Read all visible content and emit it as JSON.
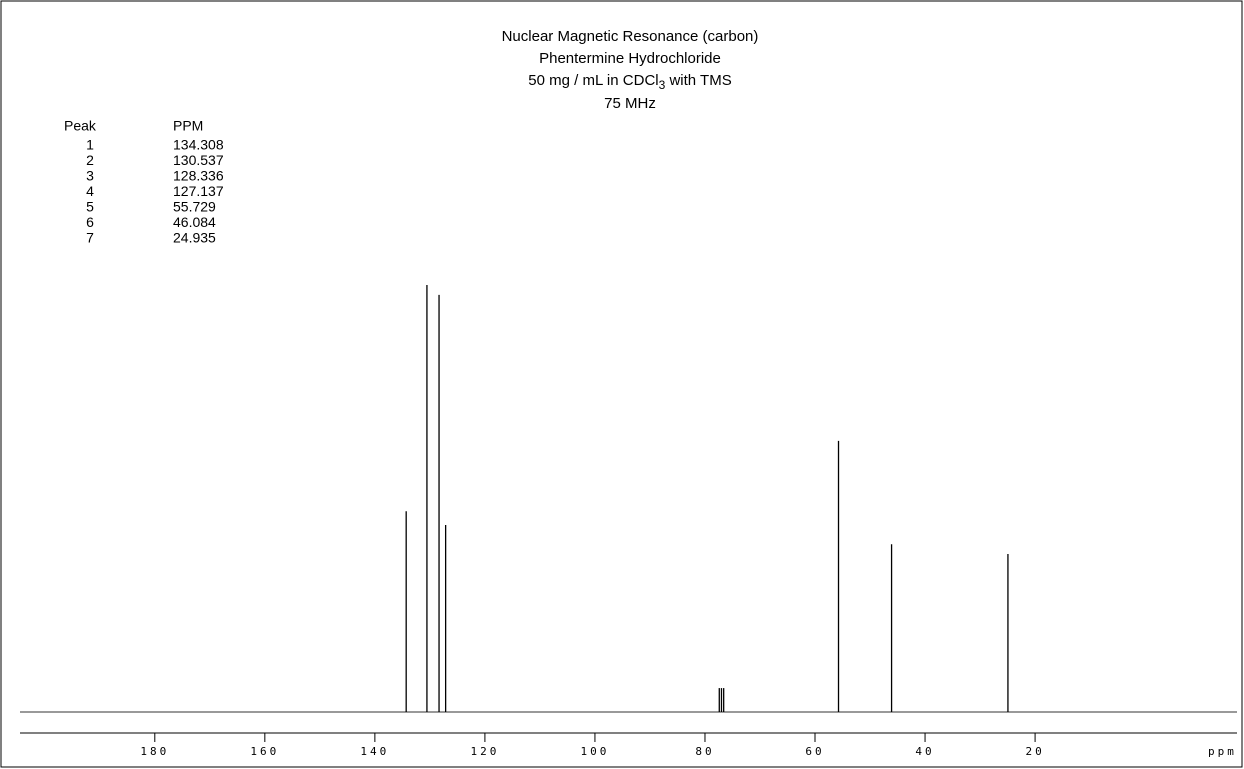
{
  "chart_data": {
    "type": "spectrum",
    "title": "Nuclear Magnetic Resonance (carbon)",
    "subtitle": "Phentermine Hydrochloride",
    "conditions": {
      "text": "50 mg / mL in CDCl",
      "subscript": "3",
      "rest": " with TMS"
    },
    "frequency": "75 MHz",
    "x_label": "ppm",
    "peak_table": {
      "header": [
        "Peak",
        "PPM"
      ],
      "peak_numbers": [
        1,
        2,
        3,
        4,
        5,
        6,
        7
      ]
    },
    "series": [
      {
        "color": "#000000",
        "x": [
          134.308,
          130.537,
          128.336,
          127.137,
          55.729,
          46.084,
          24.935
        ],
        "values": [
          47,
          100,
          97.7,
          43.8,
          63.5,
          39.3,
          37
        ]
      },
      {
        "color": "#000000",
        "x": [
          77.4,
          77.0,
          76.6
        ],
        "values": [
          5.6,
          5.6,
          5.6
        ]
      }
    ],
    "xlim": [
      204.5,
      -16.7
    ],
    "ylim": [
      0,
      100
    ],
    "xticks": [
      180,
      160,
      140,
      120,
      100,
      80,
      60,
      40,
      20
    ]
  }
}
